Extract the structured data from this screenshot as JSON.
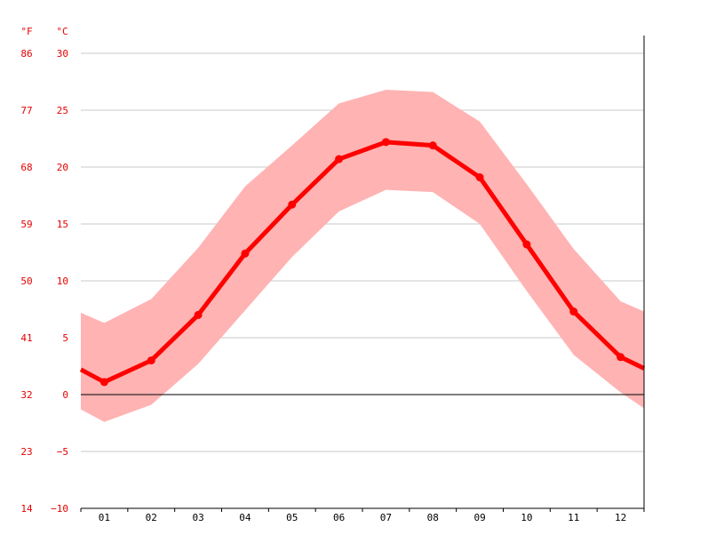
{
  "chart_data": {
    "type": "line",
    "title": "",
    "xlabel": "",
    "ylabel": "",
    "y_unit_left_outer": "°F",
    "y_unit_left_inner": "°C",
    "categories": [
      "01",
      "02",
      "03",
      "04",
      "05",
      "06",
      "07",
      "08",
      "09",
      "10",
      "11",
      "12"
    ],
    "x_start_edge": 0.5,
    "x_end_edge": 12.5,
    "ylim": [
      -10,
      30
    ],
    "yticks_c": [
      30,
      25,
      20,
      15,
      10,
      5,
      0,
      -5,
      -10
    ],
    "ytick_labels_c": [
      "30",
      "25",
      "20",
      "15",
      "10",
      "5",
      "0",
      "−5",
      "−10"
    ],
    "ytick_labels_f": [
      "86",
      "77",
      "68",
      "59",
      "50",
      "41",
      "32",
      "23",
      "14"
    ],
    "grid": true,
    "zero_line": true,
    "legend": "none",
    "colors": {
      "axis_text": "#e60000",
      "line": "#ff0000",
      "band": "#ffb3b3",
      "grid": "#c8c8c8",
      "zero": "#000000"
    },
    "series": [
      {
        "kind": "mean",
        "edge_start": 2.2,
        "values": [
          1.1,
          3.0,
          7.0,
          12.4,
          16.7,
          20.7,
          22.2,
          21.9,
          19.1,
          13.2,
          7.3,
          3.3
        ],
        "edge_end": 2.3
      },
      {
        "kind": "max",
        "edge_start": 7.2,
        "values": [
          6.3,
          8.4,
          12.9,
          18.3,
          21.9,
          25.6,
          26.8,
          26.6,
          24.0,
          18.5,
          12.8,
          8.2
        ],
        "edge_end": 7.3
      },
      {
        "kind": "min",
        "edge_start": -1.3,
        "values": [
          -2.4,
          -0.9,
          2.7,
          7.4,
          12.1,
          16.1,
          18.0,
          17.8,
          15.0,
          9.1,
          3.5,
          0.2
        ],
        "edge_end": -1.2
      }
    ]
  }
}
